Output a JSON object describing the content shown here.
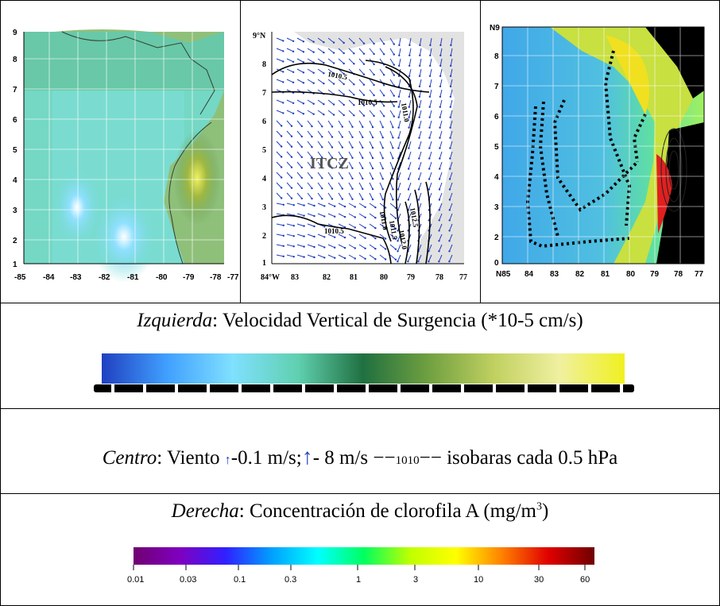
{
  "left_map": {
    "x_ticks": [
      "-85",
      "-84",
      "-83",
      "-82",
      "-81",
      "-80",
      "-79",
      "-78",
      "-77"
    ],
    "y_ticks": [
      "1",
      "2",
      "3",
      "4",
      "5",
      "6",
      "7",
      "8",
      "9"
    ]
  },
  "center_map": {
    "x_ticks": [
      "84°W",
      "83",
      "82",
      "81",
      "80",
      "79",
      "78",
      "77"
    ],
    "y_ticks": [
      "9°N",
      "8",
      "7",
      "6",
      "5",
      "4",
      "3",
      "2",
      "1"
    ],
    "label_itcz": "ITCZ",
    "isobar_labels": [
      "1010.5",
      "1010.5",
      "1011.0",
      "1010.5",
      "1011.0",
      "1011.5",
      "1012.0",
      "1012.5"
    ]
  },
  "right_map": {
    "x_ticks": [
      "N85",
      "84",
      "83",
      "82",
      "81",
      "80",
      "79",
      "78",
      "77"
    ],
    "y_ticks": [
      "N9",
      "8",
      "7",
      "6",
      "5",
      "4",
      "3",
      "2",
      "0"
    ]
  },
  "legend_left": {
    "label_italic": "Izquierda",
    "label_rest": ": Velocidad Vertical de Surgencia (*10-5 cm/s)",
    "gradient_colors": [
      "#2040c0",
      "#40a0ff",
      "#80e0ff",
      "#60d0b0",
      "#207040",
      "#70a040",
      "#c0d060",
      "#f0f0a0",
      "#f0f020"
    ]
  },
  "legend_center": {
    "label_italic": "Centro",
    "label_part1": ": Viento ",
    "label_part2": "-0.1 m/s;",
    "label_part3": "- 8 m/s ",
    "isobar_sample": "1010",
    "label_part4": " isobaras cada 0.5 hPa",
    "arrow_color": "#1f3fbf"
  },
  "legend_right": {
    "label_italic": "Derecha",
    "label_rest": ": Concentración de clorofila A (mg/m",
    "superscript": "3",
    "close_paren": ")",
    "ticks": [
      "0.01",
      "0.03",
      "0.1",
      "0.3",
      "1",
      "3",
      "10",
      "30",
      "60"
    ],
    "gradient_colors": [
      "#700070",
      "#8000c0",
      "#3020ff",
      "#00a0ff",
      "#00ffff",
      "#00ff60",
      "#c0ff00",
      "#ffff00",
      "#ff8000",
      "#e00000",
      "#700000"
    ]
  }
}
